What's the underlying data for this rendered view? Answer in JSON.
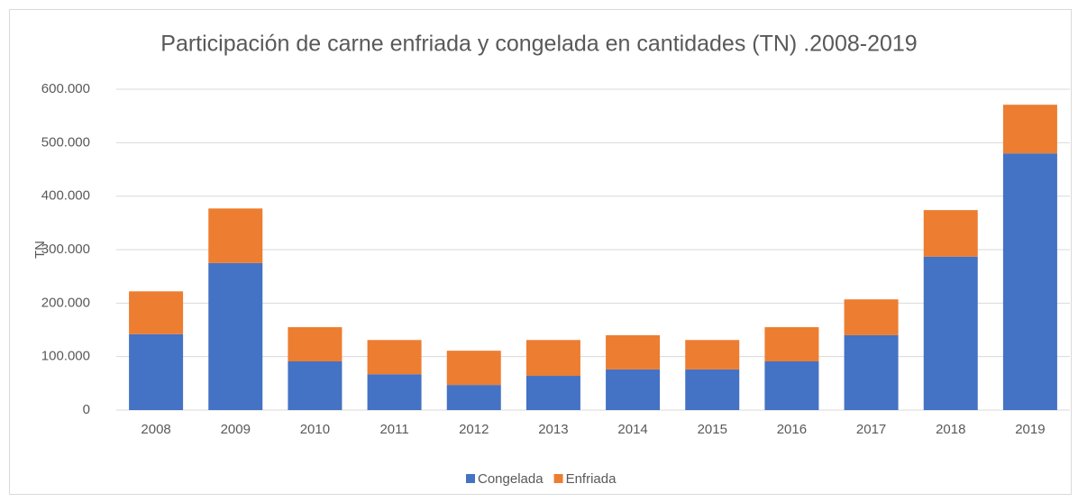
{
  "chart_data": {
    "type": "stacked_bar",
    "title": "Participación de carne enfriada y congelada en cantidades (TN) .2008-2019",
    "y_label": "TN",
    "categories": [
      "2008",
      "2009",
      "2010",
      "2011",
      "2012",
      "2013",
      "2014",
      "2015",
      "2016",
      "2017",
      "2018",
      "2019"
    ],
    "series": [
      {
        "name": "Congelada",
        "color": "#4472c4",
        "values": [
          142000,
          275000,
          91000,
          67000,
          47000,
          64000,
          76000,
          76000,
          91000,
          140000,
          287000,
          480000
        ]
      },
      {
        "name": "Enfriada",
        "color": "#ed7d31",
        "values": [
          80000,
          102000,
          64000,
          64000,
          64000,
          67000,
          64000,
          55000,
          64000,
          67000,
          87000,
          91000
        ]
      }
    ],
    "ylim": [
      0,
      600000
    ],
    "yticks": [
      0,
      {
        "value": 100000,
        "label": "100.000"
      },
      {
        "value": 200000,
        "label": "200.000"
      },
      {
        "value": 300000,
        "label": "300.000"
      },
      {
        "value": 400000,
        "label": "400.000"
      },
      {
        "value": 500000,
        "label": "500.000"
      },
      {
        "value": 600000,
        "label": "600.000"
      }
    ],
    "grid": true,
    "legend": "bottom"
  }
}
